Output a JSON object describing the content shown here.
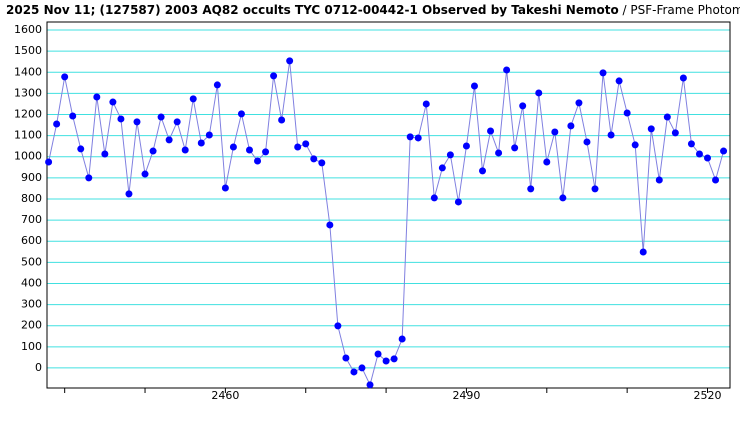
{
  "chart_data": {
    "type": "line",
    "title": "2025 Nov 11; (127587) 2003 AQ82 occults TYC 0712-00442-1 Observed by Takeshi Nemoto",
    "subtitle": " / PSF-Frame Photometry /",
    "x": [
      2438,
      2439,
      2440,
      2441,
      2442,
      2443,
      2444,
      2445,
      2446,
      2447,
      2448,
      2449,
      2450,
      2451,
      2452,
      2453,
      2454,
      2455,
      2456,
      2457,
      2458,
      2459,
      2460,
      2461,
      2462,
      2463,
      2464,
      2465,
      2466,
      2467,
      2468,
      2469,
      2470,
      2471,
      2472,
      2473,
      2474,
      2475,
      2476,
      2477,
      2478,
      2479,
      2480,
      2481,
      2482,
      2483,
      2484,
      2485,
      2486,
      2487,
      2488,
      2489,
      2490,
      2491,
      2492,
      2493,
      2494,
      2495,
      2496,
      2497,
      2498,
      2499,
      2500,
      2501,
      2502,
      2503,
      2504,
      2505,
      2506,
      2507,
      2508,
      2509,
      2510,
      2511,
      2512,
      2513,
      2514,
      2515,
      2516,
      2517,
      2518,
      2519,
      2520,
      2521,
      2522
    ],
    "series": [
      {
        "color": "#0000ff",
        "line_color": "#8080e0",
        "values": [
          975,
          1155,
          1378,
          1193,
          1037,
          900,
          1283,
          1013,
          1259,
          1179,
          824,
          1165,
          918,
          1027,
          1188,
          1080,
          1165,
          1032,
          1274,
          1065,
          1103,
          1340,
          852,
          1046,
          1203,
          1032,
          980,
          1023,
          1383,
          1174,
          1454,
          1046,
          1061,
          990,
          971,
          677,
          199,
          47,
          -19,
          0,
          -80,
          66,
          33,
          43,
          137,
          1094,
          1089,
          1250,
          805,
          947,
          1009,
          786,
          1051,
          1335,
          933,
          1122,
          1018,
          1411,
          1042,
          1241,
          848,
          1302,
          975,
          1117,
          805,
          1146,
          1255,
          1070,
          848,
          1397,
          1103,
          1359,
          1207,
          1056,
          549,
          1132,
          890,
          1188,
          1113,
          1373,
          1061,
          1013,
          994,
          890,
          1027
        ]
      }
    ],
    "xlim": [
      2437.8,
      2522.8
    ],
    "ylim": [
      -95,
      1638
    ],
    "xticks": [
      2460,
      2490,
      2520
    ],
    "xminor_ticks": [
      2440,
      2450,
      2460,
      2470,
      2480,
      2490,
      2500,
      2510,
      2520
    ],
    "yticks": [
      0,
      100,
      200,
      300,
      400,
      500,
      600,
      700,
      800,
      900,
      1000,
      1100,
      1200,
      1300,
      1400,
      1500,
      1600
    ],
    "grid": true,
    "grid_color": "#40e0e0"
  }
}
